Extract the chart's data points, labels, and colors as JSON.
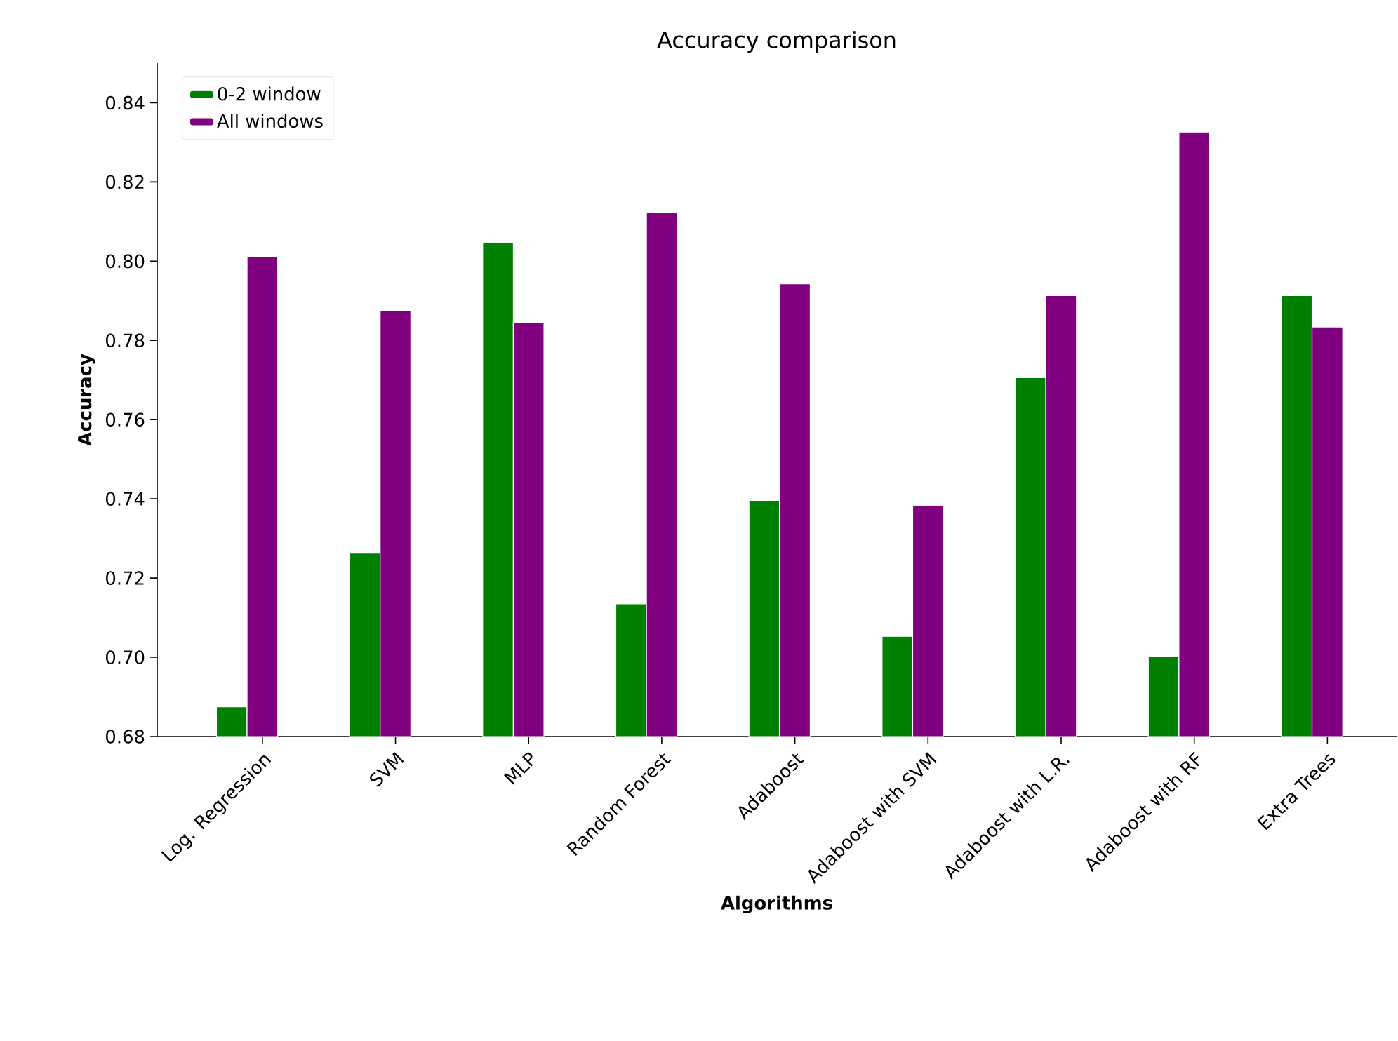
{
  "chart_data": {
    "type": "bar",
    "title": "Accuracy comparison",
    "xlabel": "Algorithms",
    "ylabel": "Accuracy",
    "categories": [
      "Log. Regression",
      "SVM",
      "MLP",
      "Random Forest",
      "Adaboost",
      "Adaboost with SVM",
      "Adaboost with L.R.",
      "Adaboost with RF",
      "Extra Trees"
    ],
    "series": [
      {
        "name": "0-2 window",
        "color": "#008000",
        "values": [
          0.6875,
          0.7263,
          0.8047,
          0.7135,
          0.7396,
          0.7053,
          0.7706,
          0.7003,
          0.7913
        ]
      },
      {
        "name": "All windows",
        "color": "#800080",
        "values": [
          0.8012,
          0.7874,
          0.7846,
          0.8122,
          0.7943,
          0.7383,
          0.7913,
          0.8326,
          0.7834
        ]
      }
    ],
    "ylim": [
      0.68,
      0.85
    ],
    "yticks": [
      {
        "value": 0.68,
        "label": "0.68"
      },
      {
        "value": 0.7,
        "label": "0.70"
      },
      {
        "value": 0.72,
        "label": "0.72"
      },
      {
        "value": 0.74,
        "label": "0.74"
      },
      {
        "value": 0.76,
        "label": "0.76"
      },
      {
        "value": 0.78,
        "label": "0.78"
      },
      {
        "value": 0.8,
        "label": "0.80"
      },
      {
        "value": 0.82,
        "label": "0.82"
      },
      {
        "value": 0.84,
        "label": "0.84"
      }
    ],
    "legend": "top left"
  }
}
